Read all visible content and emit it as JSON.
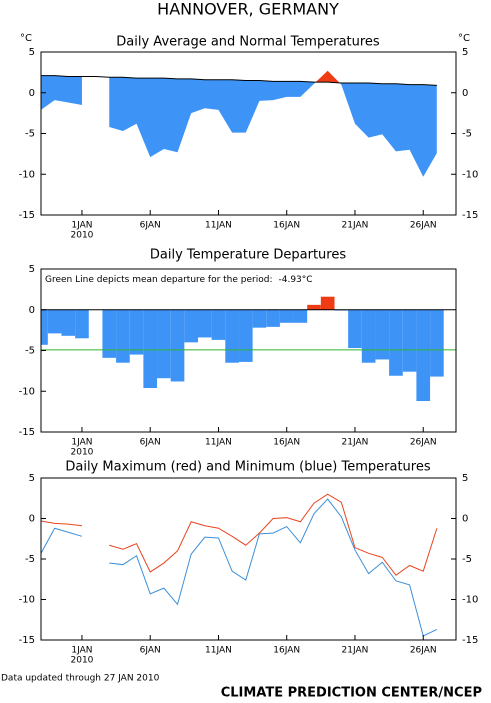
{
  "title": "HANNOVER, GERMANY",
  "footer": "Data updated through 27 JAN 2010",
  "credit": "CLIMATE PREDICTION CENTER/NCEP",
  "chart_data": [
    {
      "type": "area",
      "title": "Daily Average and Normal Temperatures",
      "y_unit_label": "°C",
      "x": [
        -2,
        -1,
        0,
        1,
        2,
        3,
        4,
        5,
        6,
        7,
        8,
        9,
        10,
        11,
        12,
        13,
        14,
        15,
        16,
        17,
        18,
        19,
        20,
        21,
        22,
        23,
        24,
        25,
        26,
        27
      ],
      "xlim": [
        -2,
        28.4
      ],
      "xticks": [
        {
          "value": 1,
          "label": "1JAN"
        },
        {
          "value": 6,
          "label": "6JAN"
        },
        {
          "value": 11,
          "label": "11JAN"
        },
        {
          "value": 16,
          "label": "16JAN"
        },
        {
          "value": 21,
          "label": "21JAN"
        },
        {
          "value": 26,
          "label": "26JAN"
        }
      ],
      "year_label": "2010",
      "ylim": [
        -15,
        5
      ],
      "yticks": [
        5,
        0,
        -5,
        -10,
        -15
      ],
      "color_below": "#3d94f6",
      "color_above": "#f03c14",
      "series": [
        {
          "name": "Normal",
          "color": "#000000",
          "values": [
            2.1,
            2.1,
            2.0,
            2.0,
            2.0,
            1.9,
            1.9,
            1.8,
            1.8,
            1.8,
            1.7,
            1.7,
            1.6,
            1.6,
            1.6,
            1.5,
            1.5,
            1.4,
            1.4,
            1.4,
            1.3,
            1.3,
            1.2,
            1.2,
            1.2,
            1.1,
            1.1,
            1.0,
            1.0,
            0.9
          ]
        },
        {
          "name": "Average",
          "values": [
            -2.1,
            -0.9,
            -1.2,
            -1.5,
            null,
            -4.2,
            -4.7,
            -3.8,
            -7.9,
            -6.9,
            -7.3,
            -2.5,
            -1.9,
            -2.1,
            -4.9,
            -4.9,
            -1.0,
            -0.9,
            -0.5,
            -0.5,
            1.1,
            2.7,
            1.0,
            -3.8,
            -5.5,
            -5.1,
            -7.2,
            -7.0,
            -10.3,
            -7.4
          ]
        }
      ]
    },
    {
      "type": "bar",
      "title": "Daily Temperature Departures",
      "annotation": "Green Line depicts mean departure for the period:",
      "mean_departure": {
        "value": -4.93,
        "label": "-4.93°C"
      },
      "mean_color": "#2fb52f",
      "x": [
        -2,
        -1,
        0,
        1,
        2,
        3,
        4,
        5,
        6,
        7,
        8,
        9,
        10,
        11,
        12,
        13,
        14,
        15,
        16,
        17,
        18,
        19,
        20,
        21,
        22,
        23,
        24,
        25,
        26,
        27
      ],
      "xlim": [
        -2,
        28.4
      ],
      "xticks": [
        {
          "value": 1,
          "label": "1JAN"
        },
        {
          "value": 6,
          "label": "6JAN"
        },
        {
          "value": 11,
          "label": "11JAN"
        },
        {
          "value": 16,
          "label": "16JAN"
        },
        {
          "value": 21,
          "label": "21JAN"
        },
        {
          "value": 26,
          "label": "26JAN"
        }
      ],
      "year_label": "2010",
      "ylim": [
        -15,
        5
      ],
      "yticks": [
        5,
        0,
        -5,
        -10,
        -15
      ],
      "color_below": "#3d94f6",
      "color_above": "#f03c14",
      "values": [
        -4.3,
        -2.9,
        -3.2,
        -3.5,
        null,
        -5.9,
        -6.5,
        -5.5,
        -9.6,
        -8.4,
        -8.8,
        -4.0,
        -3.4,
        -3.7,
        -6.5,
        -6.4,
        -2.2,
        -2.1,
        -1.6,
        -1.6,
        0.6,
        1.6,
        -0.1,
        -4.7,
        -6.5,
        -6.1,
        -8.1,
        -7.6,
        -11.2,
        -8.2
      ]
    },
    {
      "type": "line",
      "title": "Daily Maximum (red) and Minimum (blue) Temperatures",
      "x": [
        -2,
        -1,
        0,
        1,
        2,
        3,
        4,
        5,
        6,
        7,
        8,
        9,
        10,
        11,
        12,
        13,
        14,
        15,
        16,
        17,
        18,
        19,
        20,
        21,
        22,
        23,
        24,
        25,
        26,
        27
      ],
      "xlim": [
        -2,
        28.4
      ],
      "xticks": [
        {
          "value": 1,
          "label": "1JAN"
        },
        {
          "value": 6,
          "label": "6JAN"
        },
        {
          "value": 11,
          "label": "11JAN"
        },
        {
          "value": 16,
          "label": "16JAN"
        },
        {
          "value": 21,
          "label": "21JAN"
        },
        {
          "value": 26,
          "label": "26JAN"
        }
      ],
      "year_label": "2010",
      "ylim": [
        -15,
        5
      ],
      "yticks": [
        5,
        0,
        -5,
        -10,
        -15
      ],
      "series": [
        {
          "color": "#e8451e",
          "values": [
            -0.3,
            -0.6,
            -0.7,
            -0.9,
            null,
            -3.3,
            -3.8,
            -3.1,
            -6.6,
            -5.5,
            -4.0,
            -0.4,
            -0.9,
            -1.2,
            -2.2,
            -3.3,
            -1.8,
            0,
            0.1,
            -0.4,
            1.9,
            3.0,
            2.0,
            -3.6,
            -4.3,
            -4.8,
            -7.0,
            -5.8,
            -6.5,
            -1.2
          ]
        },
        {
          "color": "#3c8fd8",
          "values": [
            -4.3,
            -1.2,
            -1.7,
            -2.2,
            null,
            -5.5,
            -5.7,
            -4.6,
            -9.3,
            -8.6,
            -10.6,
            -4.4,
            -2.3,
            -2.4,
            -6.5,
            -7.6,
            -1.9,
            -1.8,
            -1.0,
            -3.0,
            0.6,
            2.4,
            0.2,
            -3.9,
            -6.8,
            -5.4,
            -7.7,
            -8.2,
            -14.5,
            -13.7
          ]
        }
      ]
    }
  ]
}
